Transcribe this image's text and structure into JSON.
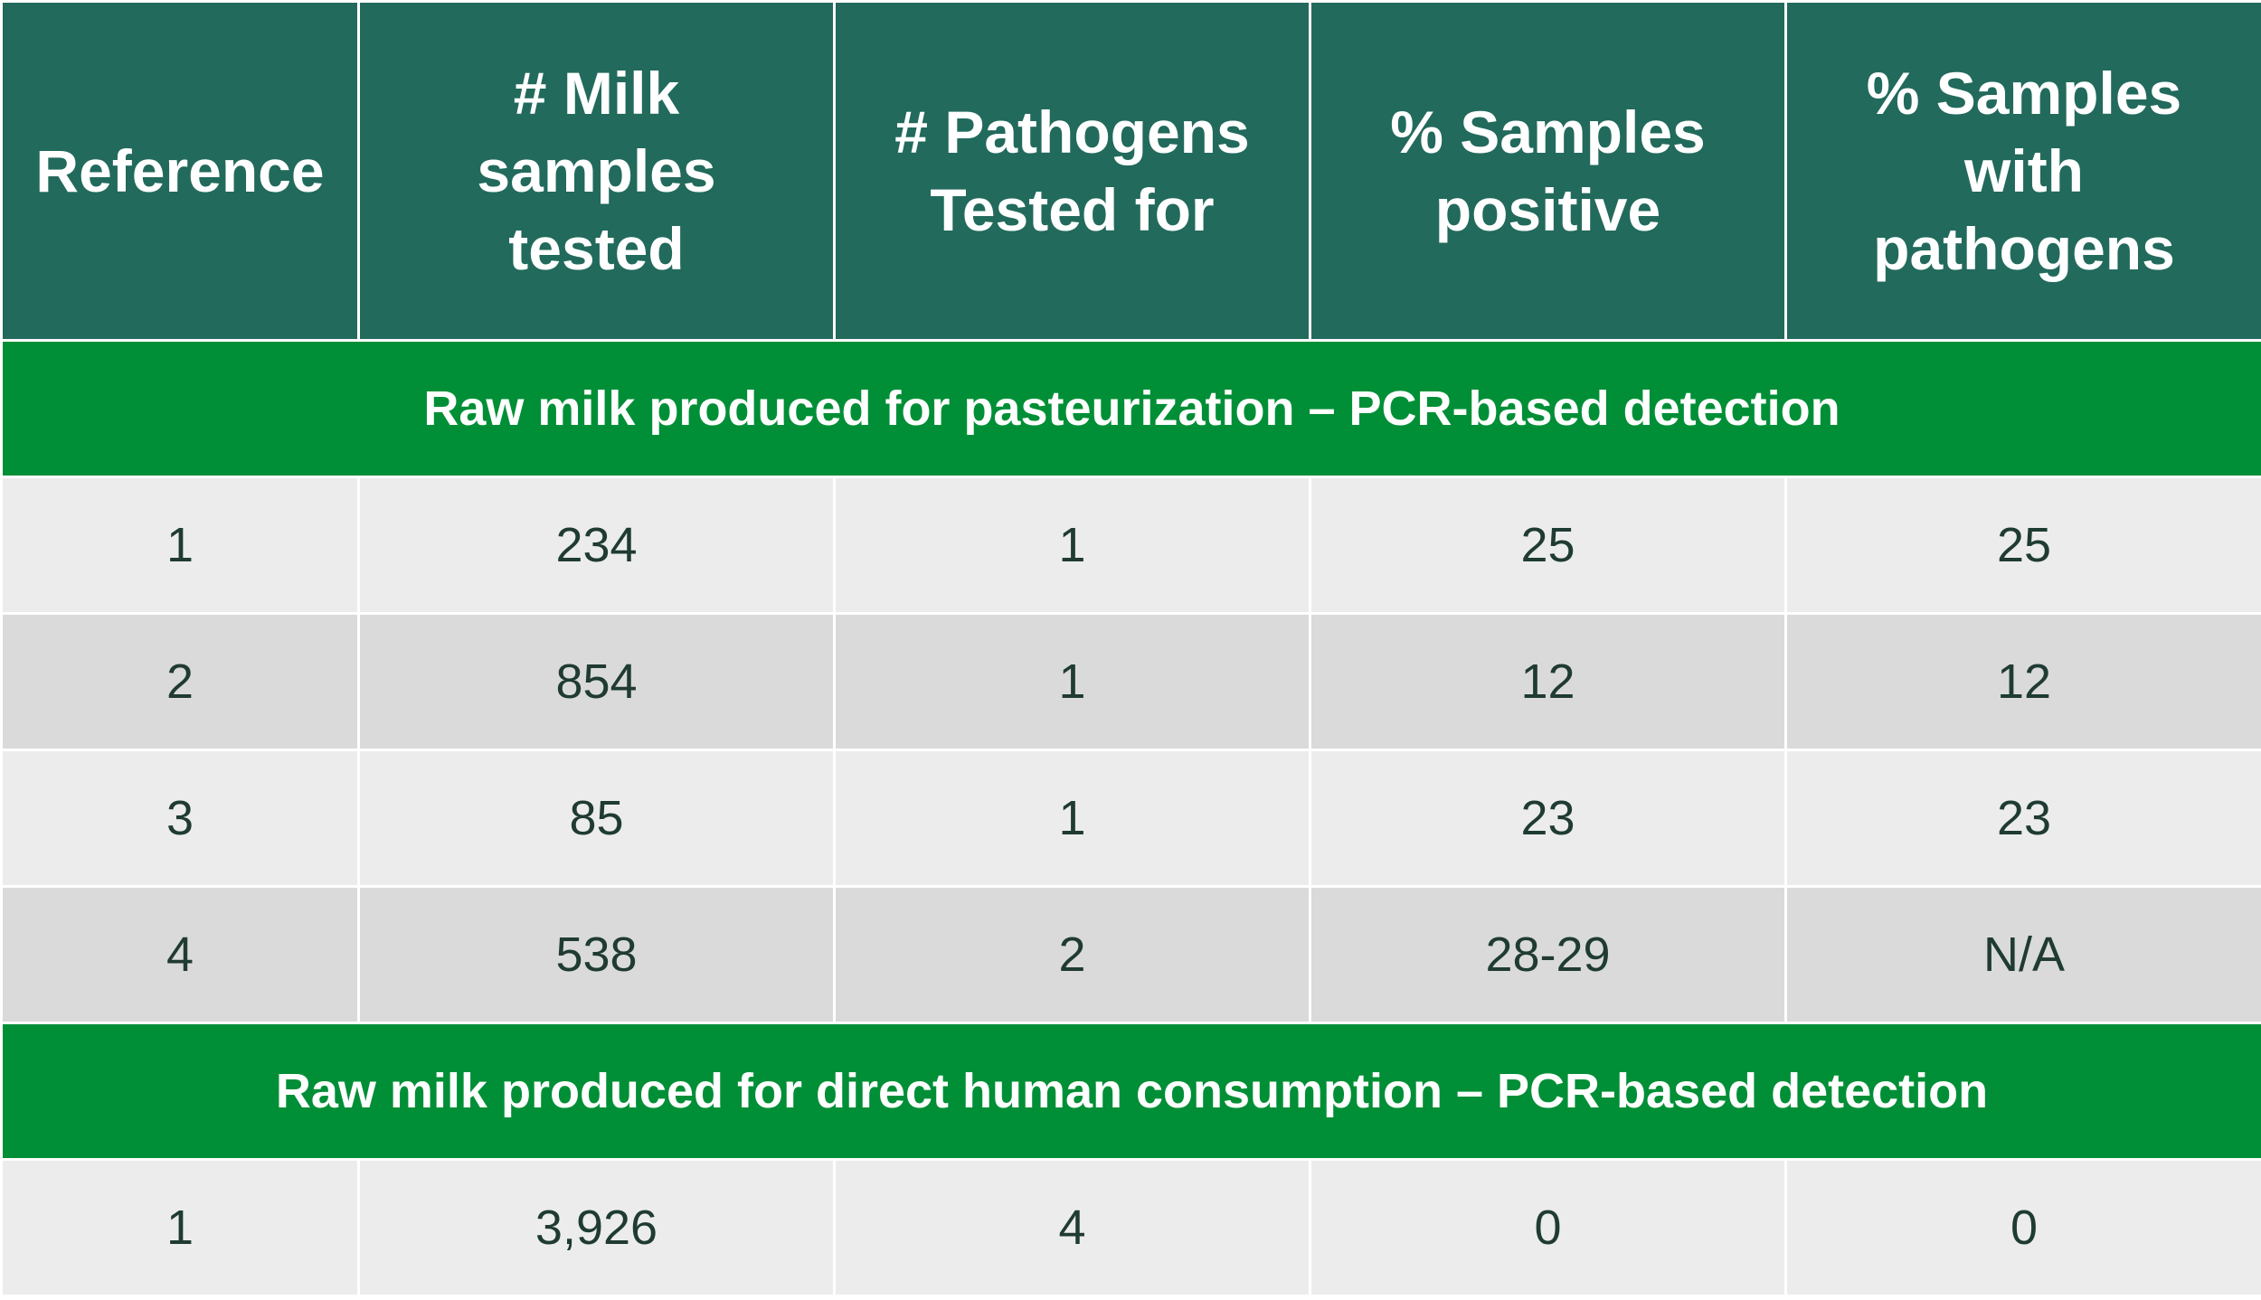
{
  "headers": [
    "Reference",
    "# Milk samples tested",
    "# Pathogens Tested for",
    "% Samples positive",
    "% Samples with pathogens"
  ],
  "sections": [
    {
      "title": "Raw milk produced for pasteurization – PCR-based detection",
      "rows": [
        [
          "1",
          "234",
          "1",
          "25",
          "25"
        ],
        [
          "2",
          "854",
          "1",
          "12",
          "12"
        ],
        [
          "3",
          "85",
          "1",
          "23",
          "23"
        ],
        [
          "4",
          "538",
          "2",
          "28-29",
          "N/A"
        ]
      ]
    },
    {
      "title": "Raw milk produced for direct human consumption – PCR-based detection",
      "rows": [
        [
          "1",
          "3,926",
          "4",
          "0",
          "0"
        ]
      ]
    }
  ]
}
